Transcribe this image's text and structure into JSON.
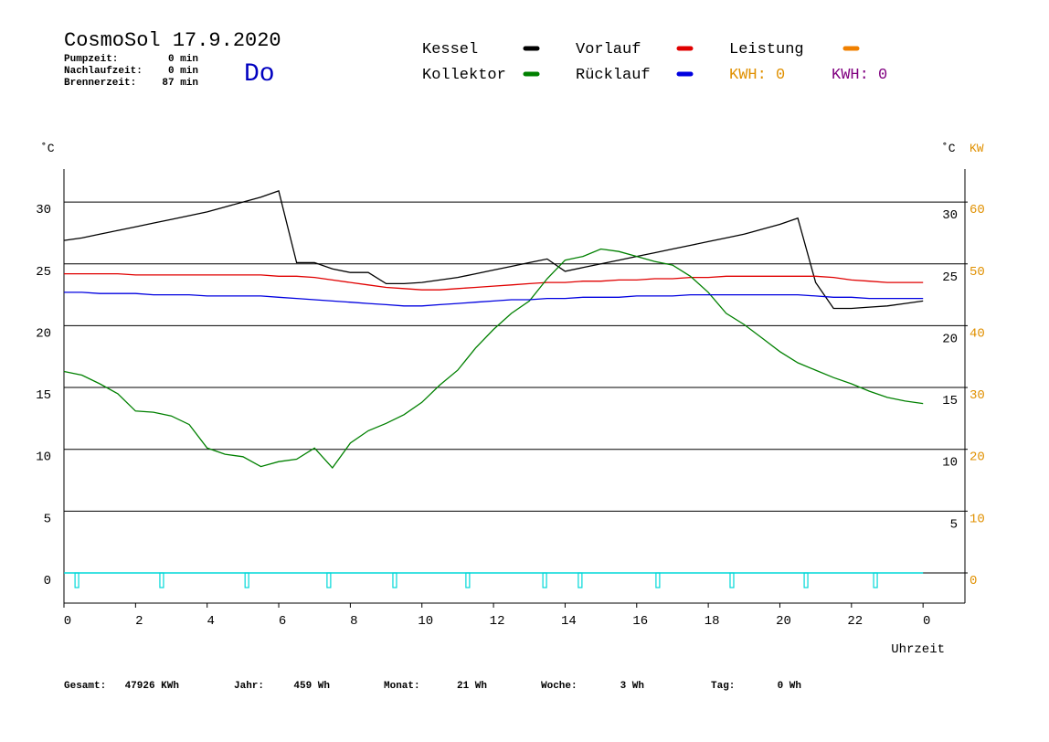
{
  "header": {
    "title": "CosmoSol 17.9.2020",
    "day": "Do",
    "day_color": "#0000c0",
    "stats": [
      {
        "label": "Pumpzeit:",
        "value": "0 min"
      },
      {
        "label": "Nachlaufzeit:",
        "value": "0 min"
      },
      {
        "label": "Brennerzeit:",
        "value": "87 min"
      }
    ]
  },
  "chart_data": {
    "type": "line",
    "x": [
      0,
      0.5,
      1,
      1.5,
      2,
      2.5,
      3,
      3.5,
      4,
      4.5,
      5,
      5.5,
      6,
      6.5,
      7,
      7.5,
      8,
      8.5,
      9,
      9.5,
      10,
      10.5,
      11,
      11.5,
      12,
      12.5,
      13,
      13.5,
      14,
      14.5,
      15,
      15.5,
      16,
      16.5,
      17,
      17.5,
      18,
      18.5,
      19,
      19.5,
      20,
      20.5,
      21,
      21.5,
      22,
      22.5,
      23,
      23.5,
      24
    ],
    "series": [
      {
        "name": "Kessel",
        "color": "#000000",
        "values": [
          26.9,
          27.1,
          27.4,
          27.7,
          28.0,
          28.3,
          28.6,
          28.9,
          29.2,
          29.6,
          30.0,
          30.4,
          30.9,
          25.1,
          25.1,
          24.6,
          24.3,
          24.3,
          23.4,
          23.4,
          23.5,
          23.7,
          23.9,
          24.2,
          24.5,
          24.8,
          25.1,
          25.4,
          24.4,
          24.7,
          25.0,
          25.3,
          25.6,
          25.9,
          26.2,
          26.5,
          26.8,
          27.1,
          27.4,
          27.8,
          28.2,
          28.7,
          23.5,
          21.4,
          21.4,
          21.5,
          21.6,
          21.8,
          22.0
        ]
      },
      {
        "name": "Vorlauf",
        "color": "#e00000",
        "values": [
          24.2,
          24.2,
          24.2,
          24.2,
          24.1,
          24.1,
          24.1,
          24.1,
          24.1,
          24.1,
          24.1,
          24.1,
          24.0,
          24.0,
          23.9,
          23.7,
          23.5,
          23.3,
          23.1,
          23.0,
          22.9,
          22.9,
          23.0,
          23.1,
          23.2,
          23.3,
          23.4,
          23.5,
          23.5,
          23.6,
          23.6,
          23.7,
          23.7,
          23.8,
          23.8,
          23.9,
          23.9,
          24.0,
          24.0,
          24.0,
          24.0,
          24.0,
          24.0,
          23.9,
          23.7,
          23.6,
          23.5,
          23.5,
          23.5
        ]
      },
      {
        "name": "Kollektor",
        "color": "#008000",
        "values": [
          16.3,
          16.0,
          15.3,
          14.5,
          13.1,
          13.0,
          12.7,
          12.0,
          10.1,
          9.6,
          9.4,
          8.6,
          9.0,
          9.2,
          10.1,
          8.5,
          10.5,
          11.5,
          12.1,
          12.8,
          13.8,
          15.2,
          16.4,
          18.2,
          19.7,
          21.0,
          22.0,
          23.8,
          25.3,
          25.6,
          26.2,
          26.0,
          25.6,
          25.2,
          24.9,
          24.0,
          22.7,
          21.0,
          20.1,
          19.0,
          17.9,
          17.0,
          16.4,
          15.8,
          15.3,
          14.7,
          14.2,
          13.9,
          13.7
        ]
      },
      {
        "name": "Rücklauf",
        "color": "#0000e0",
        "values": [
          22.7,
          22.7,
          22.6,
          22.6,
          22.6,
          22.5,
          22.5,
          22.5,
          22.4,
          22.4,
          22.4,
          22.4,
          22.3,
          22.2,
          22.1,
          22.0,
          21.9,
          21.8,
          21.7,
          21.6,
          21.6,
          21.7,
          21.8,
          21.9,
          22.0,
          22.1,
          22.1,
          22.2,
          22.2,
          22.3,
          22.3,
          22.3,
          22.4,
          22.4,
          22.4,
          22.5,
          22.5,
          22.5,
          22.5,
          22.5,
          22.5,
          22.5,
          22.4,
          22.3,
          22.3,
          22.2,
          22.2,
          22.2,
          22.2
        ]
      }
    ],
    "legend_extra": {
      "name": "Leistung",
      "color": "#f08000"
    },
    "kwh": [
      {
        "label": "KWH: 0",
        "color": "#e09000"
      },
      {
        "label": "KWH: 0",
        "color": "#800080"
      }
    ],
    "y_label": "˚C",
    "y2_label": "˚C",
    "y2_unit": "KW",
    "x_label": "Uhrzeit",
    "xlim": [
      0,
      25.17
    ],
    "xticks": [
      0,
      2,
      4,
      6,
      8,
      10,
      12,
      14,
      16,
      18,
      20,
      22,
      {
        "value": 24,
        "label": "0"
      }
    ],
    "ylim": [
      -2.44,
      32.67
    ],
    "yticks": [
      0,
      5,
      10,
      15,
      20,
      25,
      30
    ],
    "yticks_right": [
      5,
      10,
      15,
      20,
      25,
      30
    ],
    "y2lim": [
      -4.88,
      65.34
    ],
    "y2ticks": [
      0,
      10,
      20,
      30,
      40,
      50,
      60
    ],
    "y2_color": "#e09000",
    "grid": true,
    "pulses": {
      "color": "#00d8d8",
      "x": [
        0.36,
        2.73,
        5.11,
        7.4,
        9.24,
        11.28,
        13.43,
        14.42,
        16.59,
        18.66,
        20.73,
        22.67
      ]
    }
  },
  "footer": [
    {
      "label": "Gesamt:",
      "value": "47926 KWh"
    },
    {
      "label": "Jahr:",
      "value": "459 Wh"
    },
    {
      "label": "Monat:",
      "value": "21 Wh"
    },
    {
      "label": "Woche:",
      "value": "3 Wh"
    },
    {
      "label": "Tag:",
      "value": "0 Wh"
    }
  ]
}
